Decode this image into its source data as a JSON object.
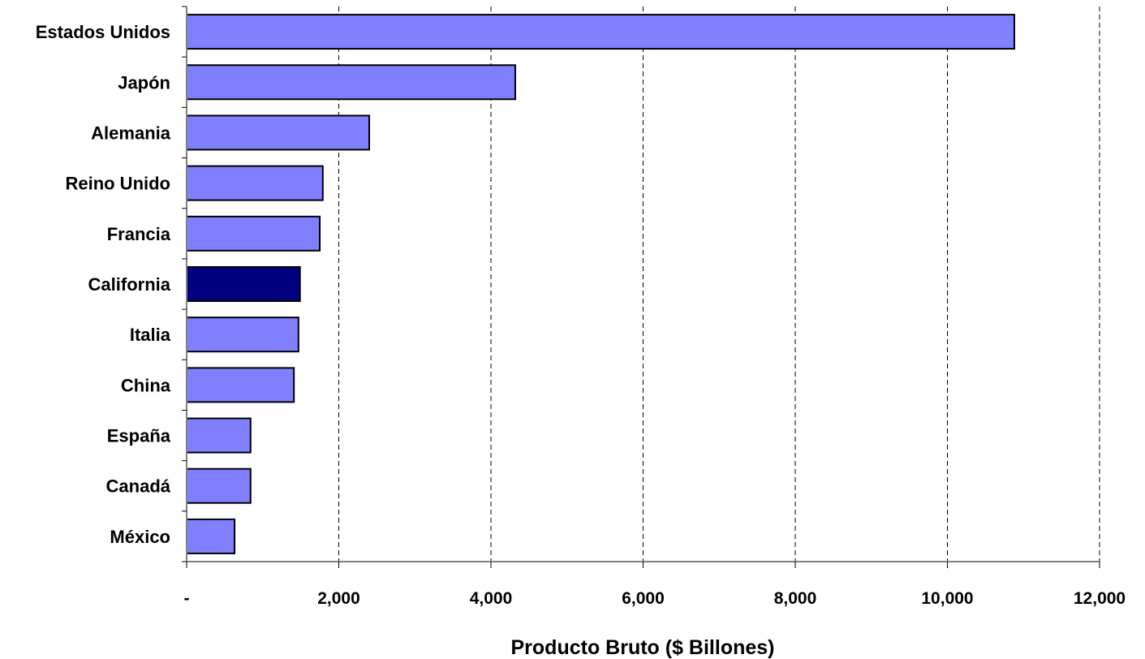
{
  "chart_data": {
    "type": "bar",
    "orientation": "horizontal",
    "categories": [
      "Estados Unidos",
      "Japón",
      "Alemania",
      "Reino Unido",
      "Francia",
      "California",
      "Italia",
      "China",
      "España",
      "Canadá",
      "México"
    ],
    "values": [
      10880,
      4320,
      2400,
      1790,
      1750,
      1490,
      1470,
      1410,
      840,
      840,
      630
    ],
    "highlight_category": "California",
    "xlabel": "Producto Bruto ($ Billones)",
    "ylabel": "",
    "title": "",
    "xlim": [
      0,
      12000
    ],
    "x_ticks": [
      0,
      2000,
      4000,
      6000,
      8000,
      10000,
      12000
    ],
    "x_tick_labels": [
      "-",
      "2,000",
      "4,000",
      "6,000",
      "8,000",
      "10,000",
      "12,000"
    ],
    "grid": "vertical dashed",
    "legend": "none",
    "colors": {
      "bar": "#8080ff",
      "highlight": "#000080",
      "bar_stroke": "#000000",
      "axis": "#808080",
      "grid": "#000000"
    }
  }
}
